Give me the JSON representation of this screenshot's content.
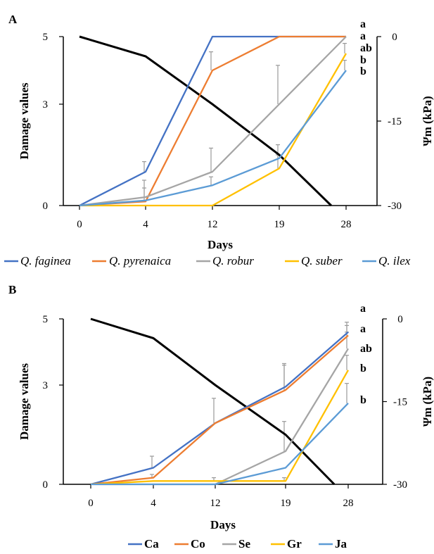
{
  "chart_data": [
    {
      "panel_label": "A",
      "type": "line",
      "x": [
        "0",
        "4",
        "12",
        "19",
        "28"
      ],
      "xlabel": "Days",
      "ylabel": "Damage values",
      "y2label": "Ψm (kPa)",
      "y_ticks": [
        "0",
        "3",
        "5"
      ],
      "y2_ticks": [
        "0",
        "-15",
        "-30"
      ],
      "ylim": [
        0,
        5
      ],
      "y2lim": [
        -30,
        0
      ],
      "series": [
        {
          "name": "Q. faginea",
          "italic": true,
          "color": "#4472C4",
          "values": [
            0,
            1.0,
            5.0,
            5.0,
            5.0
          ],
          "errors": [
            0,
            0.3,
            0,
            0,
            0
          ]
        },
        {
          "name": "Q. pyrenaica",
          "italic": true,
          "color": "#ED7D31",
          "values": [
            0,
            0.12,
            4.0,
            5.0,
            5.0
          ],
          "errors": [
            0,
            0.4,
            0.55,
            0,
            0
          ]
        },
        {
          "name": "Q. robur",
          "italic": true,
          "color": "#A5A5A5",
          "values": [
            0,
            0.25,
            1.0,
            3.0,
            5.0
          ],
          "errors": [
            0,
            0.5,
            0.7,
            1.15,
            0
          ]
        },
        {
          "name": "Q. suber",
          "italic": true,
          "color": "#FFC000",
          "values": [
            0,
            0,
            0,
            1.1,
            4.5
          ],
          "errors": [
            0,
            0,
            0,
            0.4,
            0.3
          ]
        },
        {
          "name": "Q. ilex",
          "italic": true,
          "color": "#5B9BD5",
          "values": [
            0,
            0.15,
            0.6,
            1.4,
            4.0
          ],
          "errors": [
            0,
            0,
            0.25,
            0.4,
            0.3
          ]
        }
      ],
      "secondary_series": {
        "color": "#000000",
        "points": [
          [
            0,
            0
          ],
          [
            4,
            -3.5
          ],
          [
            12,
            -12
          ],
          [
            19,
            -21
          ],
          [
            26,
            -30
          ]
        ]
      },
      "letters": [
        "a",
        "a",
        "ab",
        "b",
        "b"
      ]
    },
    {
      "panel_label": "B",
      "type": "line",
      "x": [
        "0",
        "4",
        "12",
        "19",
        "28"
      ],
      "xlabel": "Days",
      "ylabel": "Damage values",
      "y2label": "Ψm (kPa)",
      "y_ticks": [
        "0",
        "3",
        "5"
      ],
      "y2_ticks": [
        "0",
        "-15",
        "-30"
      ],
      "ylim": [
        0,
        5
      ],
      "y2lim": [
        -30,
        0
      ],
      "series": [
        {
          "name": "Ca",
          "italic": false,
          "color": "#4472C4",
          "values": [
            0,
            0.5,
            1.85,
            2.95,
            4.6
          ],
          "errors": [
            0,
            0.35,
            0,
            0.7,
            0.3
          ]
        },
        {
          "name": "Co",
          "italic": false,
          "color": "#ED7D31",
          "values": [
            0,
            0.2,
            1.85,
            2.85,
            4.5
          ],
          "errors": [
            0,
            0.1,
            0.75,
            0.75,
            0.3
          ]
        },
        {
          "name": "Se",
          "italic": false,
          "color": "#A5A5A5",
          "values": [
            0,
            0,
            0,
            1.0,
            4.1
          ],
          "errors": [
            0,
            0,
            0,
            0.9,
            0.5
          ]
        },
        {
          "name": "Gr",
          "italic": false,
          "color": "#FFC000",
          "values": [
            0,
            0.1,
            0.1,
            0.1,
            3.45
          ],
          "errors": [
            0,
            0,
            0.1,
            0.1,
            0.45
          ]
        },
        {
          "name": "Ja",
          "italic": false,
          "color": "#5B9BD5",
          "values": [
            0,
            0,
            0,
            0.5,
            2.45
          ],
          "errors": [
            0,
            0,
            0,
            0,
            0.6
          ]
        }
      ],
      "secondary_series": {
        "color": "#000000",
        "points": [
          [
            0,
            0
          ],
          [
            4,
            -3.5
          ],
          [
            12,
            -12
          ],
          [
            19,
            -21
          ],
          [
            26,
            -30
          ]
        ]
      },
      "letters": [
        "a",
        "a",
        "ab",
        "b",
        "b"
      ]
    }
  ]
}
